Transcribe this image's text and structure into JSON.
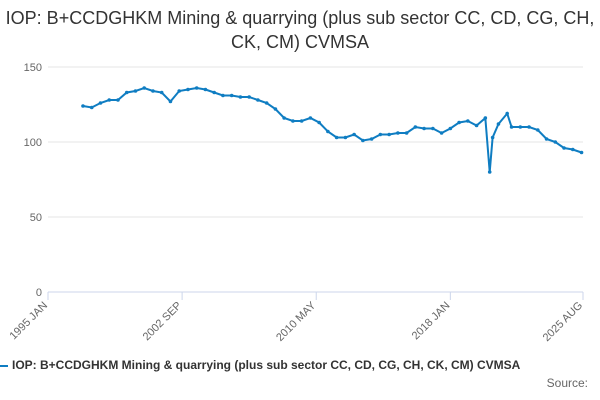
{
  "chart_data": {
    "type": "line",
    "title": "IOP: B+CCDGHKM Mining & quarrying (plus sub sector CC, CD, CG, CH, CK, CM) CVMSA",
    "source": "Source:",
    "x": [
      "1997 JAN",
      "1997 JUL",
      "1998 JAN",
      "1998 JUL",
      "1999 JAN",
      "1999 JUL",
      "2000 JAN",
      "2000 JUL",
      "2001 JAN",
      "2001 JUL",
      "2002 JAN",
      "2002 JUL",
      "2003 JAN",
      "2003 JUL",
      "2004 JAN",
      "2004 JUL",
      "2005 JAN",
      "2005 JUL",
      "2006 JAN",
      "2006 JUL",
      "2007 JAN",
      "2007 JUL",
      "2008 JAN",
      "2008 JUL",
      "2009 JAN",
      "2009 JUL",
      "2010 JAN",
      "2010 JUL",
      "2011 JAN",
      "2011 JUL",
      "2012 JAN",
      "2012 JUL",
      "2013 JAN",
      "2013 JUL",
      "2014 JAN",
      "2014 JUL",
      "2015 JAN",
      "2015 JUL",
      "2016 JAN",
      "2016 JUL",
      "2017 JAN",
      "2017 JUL",
      "2018 JAN",
      "2018 JUL",
      "2019 JAN",
      "2019 JUL",
      "2020 JAN",
      "2020 APR",
      "2020 JUN",
      "2020 OCT",
      "2021 APR",
      "2021 JUL",
      "2022 JAN",
      "2022 JUL",
      "2023 JAN",
      "2023 JUL",
      "2024 JAN",
      "2024 JUL",
      "2025 JAN",
      "2025 JUL"
    ],
    "series": [
      {
        "name": "IOP: B+CCDGHKM Mining & quarrying (plus sub sector CC, CD, CG, CH, CK, CM) CVMSA",
        "color": "#0f7dc2",
        "values": [
          124,
          123,
          126,
          128,
          128,
          133,
          134,
          136,
          134,
          133,
          127,
          134,
          135,
          136,
          135,
          133,
          131,
          131,
          130,
          130,
          128,
          126,
          122,
          116,
          114,
          114,
          116,
          113,
          107,
          103,
          103,
          105,
          101,
          102,
          105,
          105,
          106,
          106,
          110,
          109,
          109,
          106,
          109,
          113,
          114,
          111,
          116,
          80,
          103,
          112,
          119,
          110,
          110,
          110,
          108,
          102,
          100,
          96,
          95,
          93
        ]
      }
    ],
    "xlim": [
      "1995 JAN",
      "2025 AUG"
    ],
    "xticks": [
      "1995 JAN",
      "2002 SEP",
      "2010 MAY",
      "2018 JAN",
      "2025 AUG"
    ],
    "ylim": [
      0,
      150
    ],
    "yticks": [
      0,
      50,
      100,
      150
    ],
    "grid": true
  }
}
